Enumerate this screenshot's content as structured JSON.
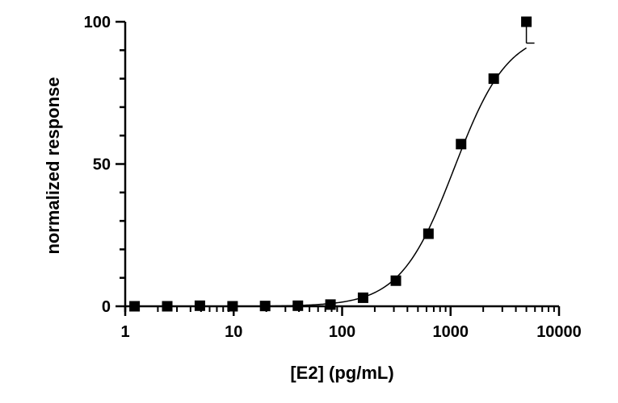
{
  "chart_data": {
    "type": "scatter",
    "xlabel": "[E2] (pg/mL)",
    "ylabel": "normalized response",
    "x_scale": "log",
    "xlim": [
      1,
      10000
    ],
    "ylim": [
      0,
      100
    ],
    "x_ticks": [
      1,
      10,
      100,
      1000,
      10000
    ],
    "x_tick_labels": [
      "1",
      "10",
      "100",
      "1000",
      "10000"
    ],
    "y_ticks": [
      0,
      50,
      100
    ],
    "y_tick_labels": [
      "0",
      "50",
      "100"
    ],
    "grid": false,
    "legend": "none",
    "marker_color": "#000000",
    "series": [
      {
        "x": [
          1.22,
          2.44,
          4.88,
          9.77,
          19.5,
          39.1,
          78.1,
          156,
          313,
          625,
          1250,
          2500,
          5000
        ],
        "y": [
          0,
          0,
          0.2,
          0,
          0.1,
          0.2,
          0.6,
          3,
          9,
          25.5,
          57,
          80,
          100
        ],
        "error": [
          0,
          0,
          0,
          0,
          0,
          0,
          0,
          0,
          0,
          0,
          0,
          0,
          7.5
        ]
      }
    ],
    "fit_curve": {
      "bottom": 0,
      "top": 97,
      "ec50": 1080,
      "hill": 1.75
    }
  }
}
